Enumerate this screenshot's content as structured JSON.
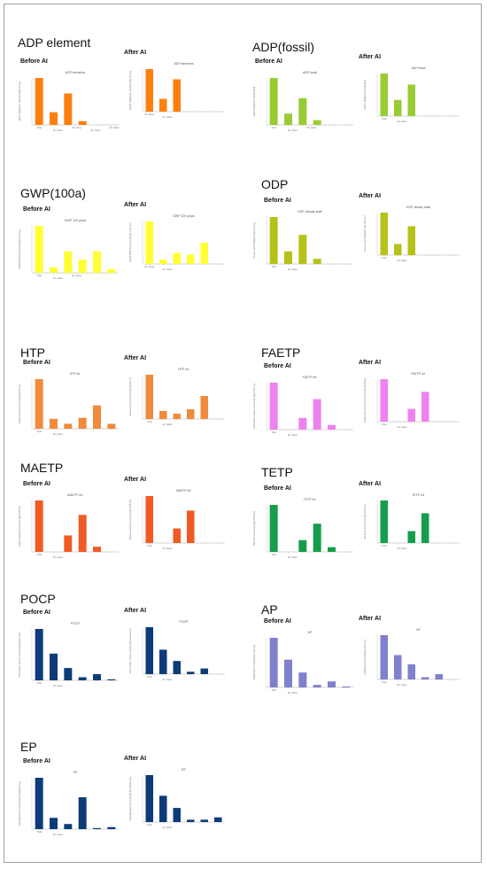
{
  "labels": {
    "before": "Before AI",
    "after": "After AI"
  },
  "sections": [
    {
      "key": "adp_element",
      "title": "ADP element",
      "before": {
        "title": "ADP elements",
        "ylabel": "Abiotic Depletion, elements [kg Sb eq.]",
        "color": "#ff7f0e",
        "values": [
          100,
          27,
          67,
          8,
          0,
          0
        ],
        "ticks": [
          "",
          "",
          "",
          "",
          "",
          "",
          ""
        ],
        "xlabels": [
          "Total",
          "Sil. Glass",
          "Sil. Glass",
          "Sil. Glass",
          "Sil. Glass"
        ]
      },
      "after": {
        "title": "ADP elements",
        "ylabel": "Abiotic Depletion, elements [kg Sb eq.]",
        "color": "#ff7f0e",
        "values": [
          100,
          30,
          76,
          0,
          0,
          0
        ],
        "ticks": [],
        "xlabels": [
          "Sil. Glass",
          "Sil. Glass"
        ]
      }
    },
    {
      "key": "adp_fossil",
      "title": "ADP(fossil)",
      "before": {
        "title": "ADP fossil",
        "ylabel": "Abiotic Depletion (fossil) [MJ]",
        "color": "#99cc33",
        "values": [
          100,
          24,
          57,
          10,
          0,
          0
        ],
        "ticks": [],
        "xlabels": [
          "Total",
          "Sil. Glass",
          "Sil. Glass"
        ]
      },
      "after": {
        "title": "ADP fossil",
        "ylabel": "Abiotic Depletion (fossil) [MJ]",
        "color": "#99cc33",
        "values": [
          100,
          38,
          74,
          0,
          0,
          0
        ],
        "ticks": [],
        "xlabels": [
          "Total",
          "Sil. Glass"
        ]
      }
    },
    {
      "key": "gwp",
      "title": "GWP(100a)",
      "before": {
        "title": "GWP 100 years",
        "ylabel": "Global Warming Potential [kg CO2 eq.]",
        "color": "#ffff33",
        "values": [
          100,
          12,
          46,
          28,
          46,
          8
        ],
        "ticks": [],
        "xlabels": [
          "Total",
          "Sil. Glass",
          "Sil. Glass"
        ]
      },
      "after": {
        "title": "GWP 100 years",
        "ylabel": "Global Warming Potential [kg CO2 eq.]",
        "color": "#ffff33",
        "values": [
          100,
          10,
          26,
          22,
          50,
          0
        ],
        "ticks": [],
        "xlabels": [
          "Sil. Glass",
          "Sil. Glass"
        ]
      }
    },
    {
      "key": "odp",
      "title": "ODP",
      "before": {
        "title": "ODP, steady state",
        "ylabel": "Ozone Layer Depletion [kg R11 eq.]",
        "color": "#b5c21a",
        "values": [
          100,
          27,
          62,
          11,
          0,
          0
        ],
        "ticks": [],
        "xlabels": [
          "Total",
          "Sil. Glass"
        ]
      },
      "after": {
        "title": "ODP, steady state",
        "ylabel": "Ozone Layer Depletion [kg R11 eq.]",
        "color": "#b5c21a",
        "values": [
          100,
          26,
          68,
          0,
          0,
          0
        ],
        "ticks": [],
        "xlabels": [
          "Total",
          "Sil. Glass"
        ]
      }
    },
    {
      "key": "htp",
      "title": "HTP",
      "before": {
        "title": "HTP inf.",
        "ylabel": "Human Toxicity Potential [kg DCB eq.]",
        "color": "#f08a3c",
        "values": [
          100,
          20,
          10,
          22,
          47,
          10
        ],
        "ticks": [],
        "xlabels": [
          "Total",
          "Sil. Glass"
        ]
      },
      "after": {
        "title": "HTP inf.",
        "ylabel": "Human Toxicity Potential [kg DCB eq.]",
        "color": "#f08a3c",
        "values": [
          100,
          18,
          12,
          22,
          52,
          0
        ],
        "ticks": [],
        "xlabels": [
          "Total",
          "Sil. Glass"
        ]
      }
    },
    {
      "key": "faetp",
      "title": "FAETP",
      "before": {
        "title": "FAETP inf.",
        "ylabel": "Freshwater Aquatic Ecotoxicity [kg DCB eq.]",
        "color": "#ee82ee",
        "values": [
          100,
          0,
          25,
          65,
          10,
          0
        ],
        "ticks": [],
        "xlabels": [
          "Total",
          "Sil. Glass"
        ]
      },
      "after": {
        "title": "FAETP inf.",
        "ylabel": "Freshwater Aquatic Ecotoxicity [kg DCB eq.]",
        "color": "#ee82ee",
        "values": [
          100,
          0,
          30,
          70,
          0,
          0
        ],
        "ticks": [],
        "xlabels": [
          "Total",
          "Sil. Glass"
        ]
      }
    },
    {
      "key": "maetp",
      "title": "MAETP",
      "before": {
        "title": "MAETP inf.",
        "ylabel": "Marine Aquatic Ecotoxicity [kg DCB eq.]",
        "color": "#f05a24",
        "values": [
          100,
          0,
          32,
          72,
          10,
          0
        ],
        "ticks": [],
        "xlabels": [
          "Total",
          "Sil. Glass"
        ]
      },
      "after": {
        "title": "MAETP inf.",
        "ylabel": "Marine Aquatic Ecotoxicity [kg DCB eq.]",
        "color": "#f05a24",
        "values": [
          100,
          0,
          31,
          69,
          0,
          0
        ],
        "ticks": [],
        "xlabels": [
          "Total",
          "Sil. Glass"
        ]
      }
    },
    {
      "key": "tetp",
      "title": "TETP",
      "before": {
        "title": "TETP inf.",
        "ylabel": "Terrestric Ecotoxicity [kg DCB eq.]",
        "color": "#149e4b",
        "values": [
          100,
          0,
          25,
          60,
          10,
          0
        ],
        "ticks": [],
        "xlabels": [
          "Total",
          "Sil. Glass"
        ]
      },
      "after": {
        "title": "TETP inf.",
        "ylabel": "Terrestric Ecotoxicity [kg DCB eq.]",
        "color": "#149e4b",
        "values": [
          100,
          0,
          28,
          70,
          0,
          0
        ],
        "ticks": [],
        "xlabels": [
          "Total",
          "Sil. Glass"
        ]
      }
    },
    {
      "key": "pocp",
      "title": "POCP",
      "before": {
        "title": "POCP",
        "ylabel": "Photochem. Ozone Creation [kg Ethene eq.]",
        "color": "#0d3b78",
        "values": [
          100,
          52,
          24,
          6,
          12,
          2
        ],
        "ticks": [],
        "xlabels": [
          "Total",
          "Sil. Glass"
        ]
      },
      "after": {
        "title": "POCP",
        "ylabel": "Photochem. Ozone Creation [kg Ethene eq.]",
        "color": "#0d3b78",
        "values": [
          100,
          52,
          28,
          5,
          12,
          0
        ],
        "ticks": [],
        "xlabels": [
          "Total",
          "Sil. Glass"
        ]
      }
    },
    {
      "key": "ap",
      "title": "AP",
      "before": {
        "title": "AP",
        "ylabel": "Acidification Potential [kg SO2 eq.]",
        "color": "#8080cc",
        "values": [
          100,
          56,
          30,
          5,
          12,
          2
        ],
        "ticks": [],
        "xlabels": [
          "Total",
          "Sil. Glass"
        ]
      },
      "after": {
        "title": "AP",
        "ylabel": "Acidification Potential [kg SO2 eq.]",
        "color": "#8080cc",
        "values": [
          100,
          55,
          34,
          5,
          12,
          0
        ],
        "ticks": [],
        "xlabels": [
          "Total",
          "Sil. Glass"
        ]
      }
    },
    {
      "key": "ep",
      "title": "EP",
      "before": {
        "title": "EP",
        "ylabel": "Eutrophication Potential [kg Phosphate eq.]",
        "color": "#0d3b78",
        "values": [
          100,
          22,
          10,
          62,
          2,
          4
        ],
        "ticks": [],
        "xlabels": [
          "Total",
          "Sil. Glass"
        ]
      },
      "after": {
        "title": "EP",
        "ylabel": "Eutrophication Potential [kg Phosphate eq.]",
        "color": "#0d3b78",
        "values": [
          100,
          56,
          30,
          5,
          5,
          10
        ],
        "ticks": [],
        "xlabels": [
          "Total",
          "Sil. Glass"
        ]
      }
    }
  ],
  "chart_data": [
    {
      "type": "bar",
      "title": "ADP elements",
      "variant": "Before AI",
      "values": [
        100,
        27,
        67,
        8
      ]
    },
    {
      "type": "bar",
      "title": "ADP elements",
      "variant": "After AI",
      "values": [
        100,
        30,
        76
      ]
    },
    {
      "type": "bar",
      "title": "ADP fossil",
      "variant": "Before AI",
      "values": [
        100,
        24,
        57,
        10
      ]
    },
    {
      "type": "bar",
      "title": "ADP fossil",
      "variant": "After AI",
      "values": [
        100,
        38,
        74
      ]
    },
    {
      "type": "bar",
      "title": "GWP 100 years",
      "variant": "Before AI",
      "values": [
        100,
        12,
        46,
        28,
        46,
        8
      ]
    },
    {
      "type": "bar",
      "title": "GWP 100 years",
      "variant": "After AI",
      "values": [
        100,
        10,
        26,
        22,
        50
      ]
    },
    {
      "type": "bar",
      "title": "ODP, steady state",
      "variant": "Before AI",
      "values": [
        100,
        27,
        62,
        11
      ]
    },
    {
      "type": "bar",
      "title": "ODP, steady state",
      "variant": "After AI",
      "values": [
        100,
        26,
        68
      ]
    },
    {
      "type": "bar",
      "title": "HTP inf.",
      "variant": "Before AI",
      "values": [
        100,
        20,
        10,
        22,
        47,
        10
      ]
    },
    {
      "type": "bar",
      "title": "HTP inf.",
      "variant": "After AI",
      "values": [
        100,
        18,
        12,
        22,
        52
      ]
    },
    {
      "type": "bar",
      "title": "FAETP inf.",
      "variant": "Before AI",
      "values": [
        100,
        0,
        25,
        65,
        10
      ]
    },
    {
      "type": "bar",
      "title": "FAETP inf.",
      "variant": "After AI",
      "values": [
        100,
        0,
        30,
        70
      ]
    },
    {
      "type": "bar",
      "title": "MAETP inf.",
      "variant": "Before AI",
      "values": [
        100,
        0,
        32,
        72,
        10
      ]
    },
    {
      "type": "bar",
      "title": "MAETP inf.",
      "variant": "After AI",
      "values": [
        100,
        0,
        31,
        69
      ]
    },
    {
      "type": "bar",
      "title": "TETP inf.",
      "variant": "Before AI",
      "values": [
        100,
        0,
        25,
        60,
        10
      ]
    },
    {
      "type": "bar",
      "title": "TETP inf.",
      "variant": "After AI",
      "values": [
        100,
        0,
        28,
        70
      ]
    },
    {
      "type": "bar",
      "title": "POCP",
      "variant": "Before AI",
      "values": [
        100,
        52,
        24,
        6,
        12,
        2
      ]
    },
    {
      "type": "bar",
      "title": "POCP",
      "variant": "After AI",
      "values": [
        100,
        52,
        28,
        5,
        12
      ]
    },
    {
      "type": "bar",
      "title": "AP",
      "variant": "Before AI",
      "values": [
        100,
        56,
        30,
        5,
        12,
        2
      ]
    },
    {
      "type": "bar",
      "title": "AP",
      "variant": "After AI",
      "values": [
        100,
        55,
        34,
        5,
        12
      ]
    },
    {
      "type": "bar",
      "title": "EP",
      "variant": "Before AI",
      "values": [
        100,
        22,
        10,
        62,
        2,
        4
      ]
    },
    {
      "type": "bar",
      "title": "EP",
      "variant": "After AI",
      "values": [
        100,
        56,
        30,
        5,
        5,
        10
      ]
    }
  ]
}
